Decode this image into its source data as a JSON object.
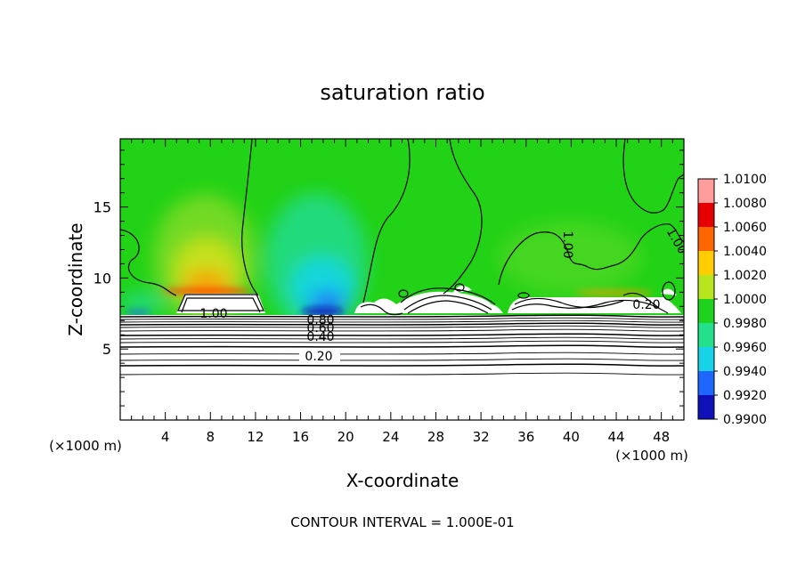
{
  "chart_data": {
    "type": "heatmap",
    "title": "saturation ratio",
    "xlabel": "X-coordinate",
    "ylabel": "Z-coordinate",
    "x_unit_left": "(×1000 m)",
    "x_unit_right": "(×1000 m)",
    "xlim": [
      0,
      50
    ],
    "ylim": [
      0,
      19.8
    ],
    "x_ticks": [
      "4",
      "8",
      "12",
      "16",
      "20",
      "24",
      "28",
      "32",
      "36",
      "40",
      "44",
      "48"
    ],
    "y_ticks": [
      "5",
      "10",
      "15"
    ],
    "colorbar": {
      "labels": [
        "0.9900",
        "0.9920",
        "0.9940",
        "0.9960",
        "0.9980",
        "1.0000",
        "1.0020",
        "1.0040",
        "1.0060",
        "1.0080",
        "1.0100"
      ],
      "colors": [
        "#7a1fb0",
        "#1010b8",
        "#1e66ff",
        "#18d2e6",
        "#22e08c",
        "#1ed21e",
        "#b8e61e",
        "#ffcc00",
        "#ff6600",
        "#e60000",
        "#ff9c9c"
      ]
    },
    "contour_labels": [
      "1.00",
      "1.00",
      "1.00",
      "1.00",
      "0.80",
      "0.60",
      "0.40",
      "0.20",
      "0.20"
    ],
    "footer": "CONTOUR INTERVAL = 1.000E-01"
  }
}
